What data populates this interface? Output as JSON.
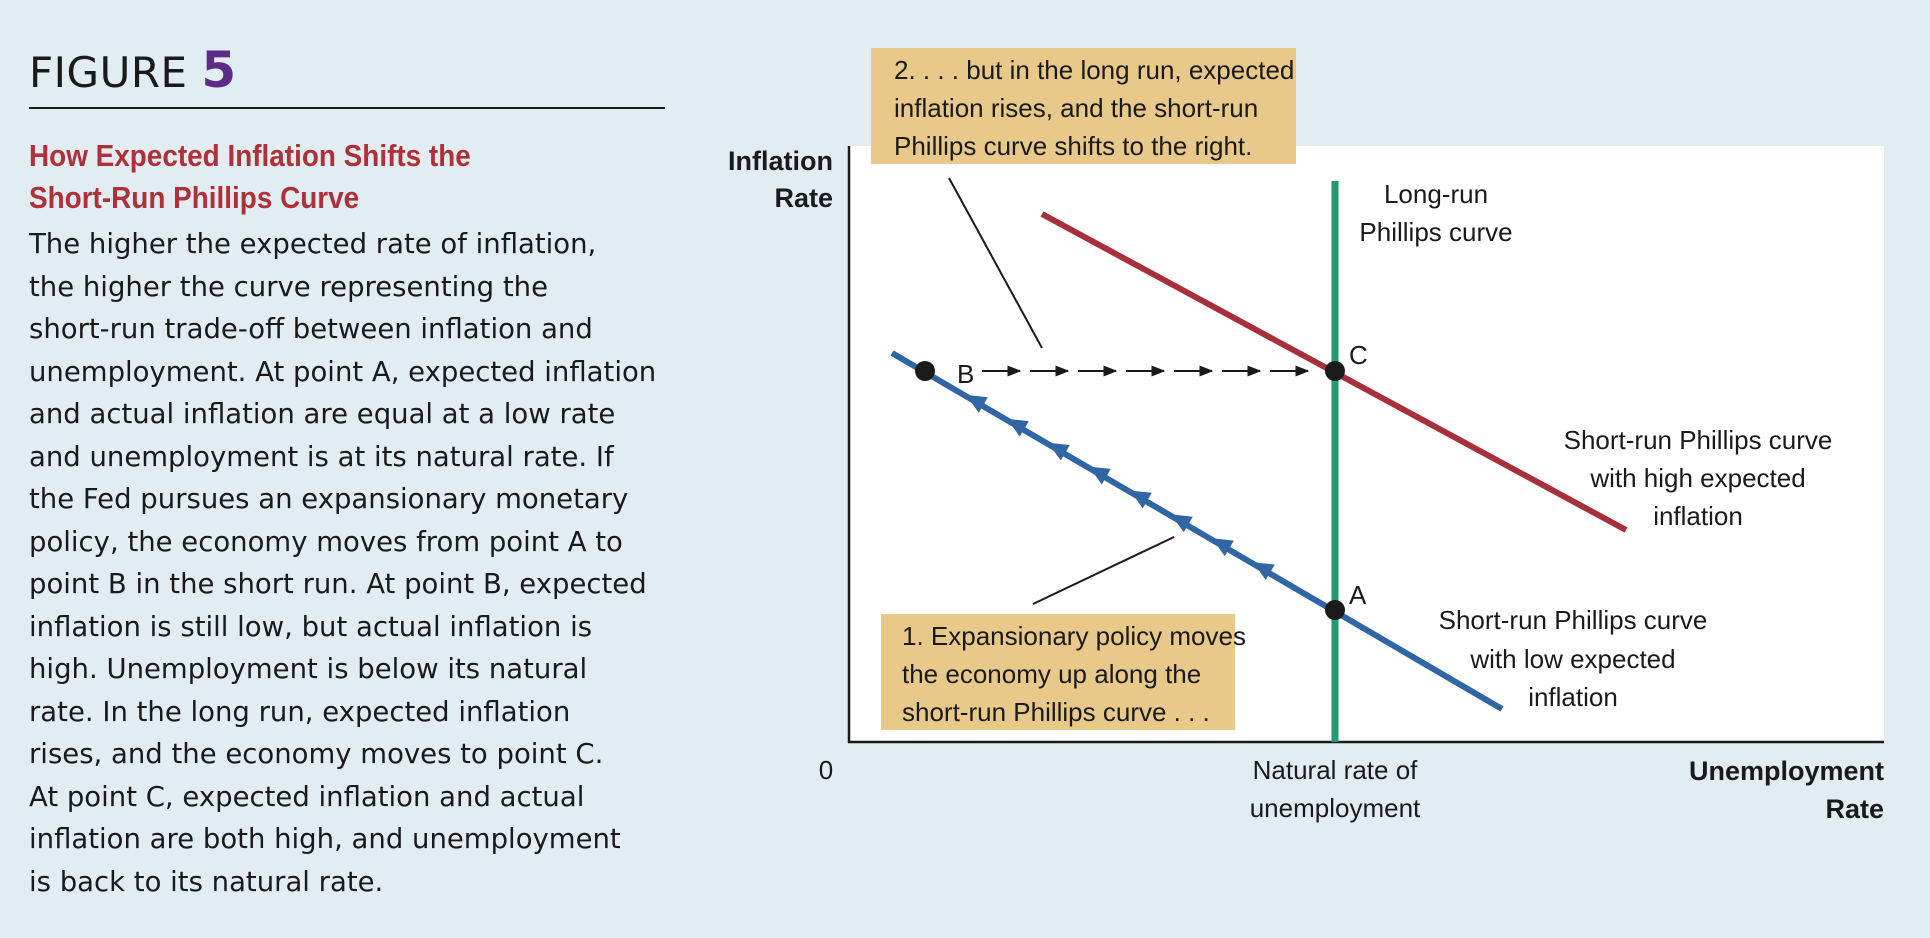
{
  "figure": {
    "label": "FIGURE",
    "number": "5"
  },
  "caption": {
    "title_lines": [
      "How Expected Inflation Shifts the",
      "Short-Run Phillips Curve"
    ],
    "body_lines": [
      "The higher the expected rate of inflation,",
      "the higher the curve representing the",
      "short-run trade-off between inflation and",
      "unemployment. At point A, expected inflation",
      "and actual inflation are equal at a low rate",
      "and unemployment is at its natural rate. If",
      "the Fed pursues an expansionary monetary",
      "policy, the economy moves from point A to",
      "point B in the short run. At point B, expected",
      "inflation is still low, but actual inflation is",
      "high. Unemployment is below its natural",
      "rate. In the long run, expected inflation",
      "rises, and the economy moves to point C.",
      "At point C, expected inflation and actual",
      "inflation are both high, and unemployment",
      "is back to its natural rate."
    ]
  },
  "diagram": {
    "y_axis_label": [
      "Inflation",
      "Rate"
    ],
    "x_axis_label": [
      "Unemployment",
      "Rate"
    ],
    "origin": "0",
    "natural_rate_label": [
      "Natural rate of",
      "unemployment"
    ],
    "lrpc_label": [
      "Long-run",
      "Phillips curve"
    ],
    "srpc_high_label": [
      "Short-run Phillips curve",
      "with high expected",
      "inflation"
    ],
    "srpc_low_label": [
      "Short-run Phillips curve",
      "with low expected",
      "inflation"
    ],
    "points": {
      "a": "A",
      "b": "B",
      "c": "C"
    },
    "note1": [
      "1. Expansionary policy moves",
      "the economy up along the",
      "short-run Phillips curve . . ."
    ],
    "note2": [
      "2. . . . but in the long run, expected",
      "inflation rises, and the short-run",
      "Phillips curve shifts to the right."
    ],
    "colors": {
      "srpc_low": "#2f66a3",
      "srpc_high": "#a8303a",
      "lrpc": "#1f9a72",
      "note_box": "#e8c98a",
      "plot_bg": "#ffffff",
      "page_bg": "#e2edf2"
    }
  }
}
